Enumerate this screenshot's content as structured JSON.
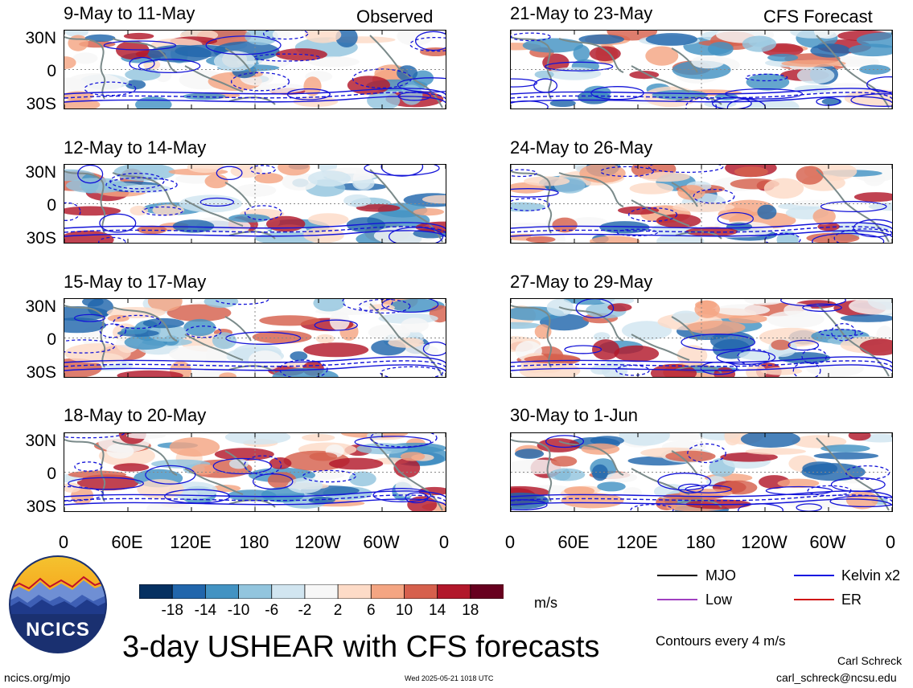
{
  "header": {
    "observed_label": "Observed",
    "forecast_label": "CFS Forecast"
  },
  "panels": [
    {
      "title": "9-May to 11-May",
      "column": "left",
      "row": 0
    },
    {
      "title": "12-May to 14-May",
      "column": "left",
      "row": 1
    },
    {
      "title": "15-May to 17-May",
      "column": "left",
      "row": 2
    },
    {
      "title": "18-May to 20-May",
      "column": "left",
      "row": 3
    },
    {
      "title": "21-May to 23-May",
      "column": "right",
      "row": 0
    },
    {
      "title": "24-May to 26-May",
      "column": "right",
      "row": 1
    },
    {
      "title": "27-May to 29-May",
      "column": "right",
      "row": 2
    },
    {
      "title": "30-May to 1-Jun",
      "column": "right",
      "row": 3
    }
  ],
  "lat_labels": [
    "30N",
    "0",
    "30S"
  ],
  "lon_labels": [
    "0",
    "60E",
    "120E",
    "180",
    "120W",
    "60W",
    "0"
  ],
  "colorbar": {
    "ticks": [
      "-18",
      "-14",
      "-10",
      "-6",
      "-2",
      "2",
      "6",
      "10",
      "14",
      "18"
    ],
    "colors": [
      "#053061",
      "#2166ac",
      "#4393c3",
      "#92c5de",
      "#d1e5f0",
      "#f7f7f7",
      "#fddbc7",
      "#f4a582",
      "#d6604d",
      "#b2182b",
      "#67001f"
    ],
    "unit": "m/s"
  },
  "legend": {
    "items": [
      {
        "label": "MJO",
        "color": "#000000"
      },
      {
        "label": "Kelvin x2",
        "color": "#1010e0"
      },
      {
        "label": "Low",
        "color": "#a040c0"
      },
      {
        "label": "ER",
        "color": "#d01010"
      }
    ],
    "contours_note": "Contours every 4 m/s"
  },
  "logo": {
    "text": "NCICS"
  },
  "footer": {
    "main_title": "3-day USHEAR with CFS forecasts",
    "website": "ncics.org/mjo",
    "timestamp": "Wed 2025-05-21 1018 UTC",
    "author": "Carl Schreck",
    "email": "carl_schreck@ncsu.edu"
  }
}
